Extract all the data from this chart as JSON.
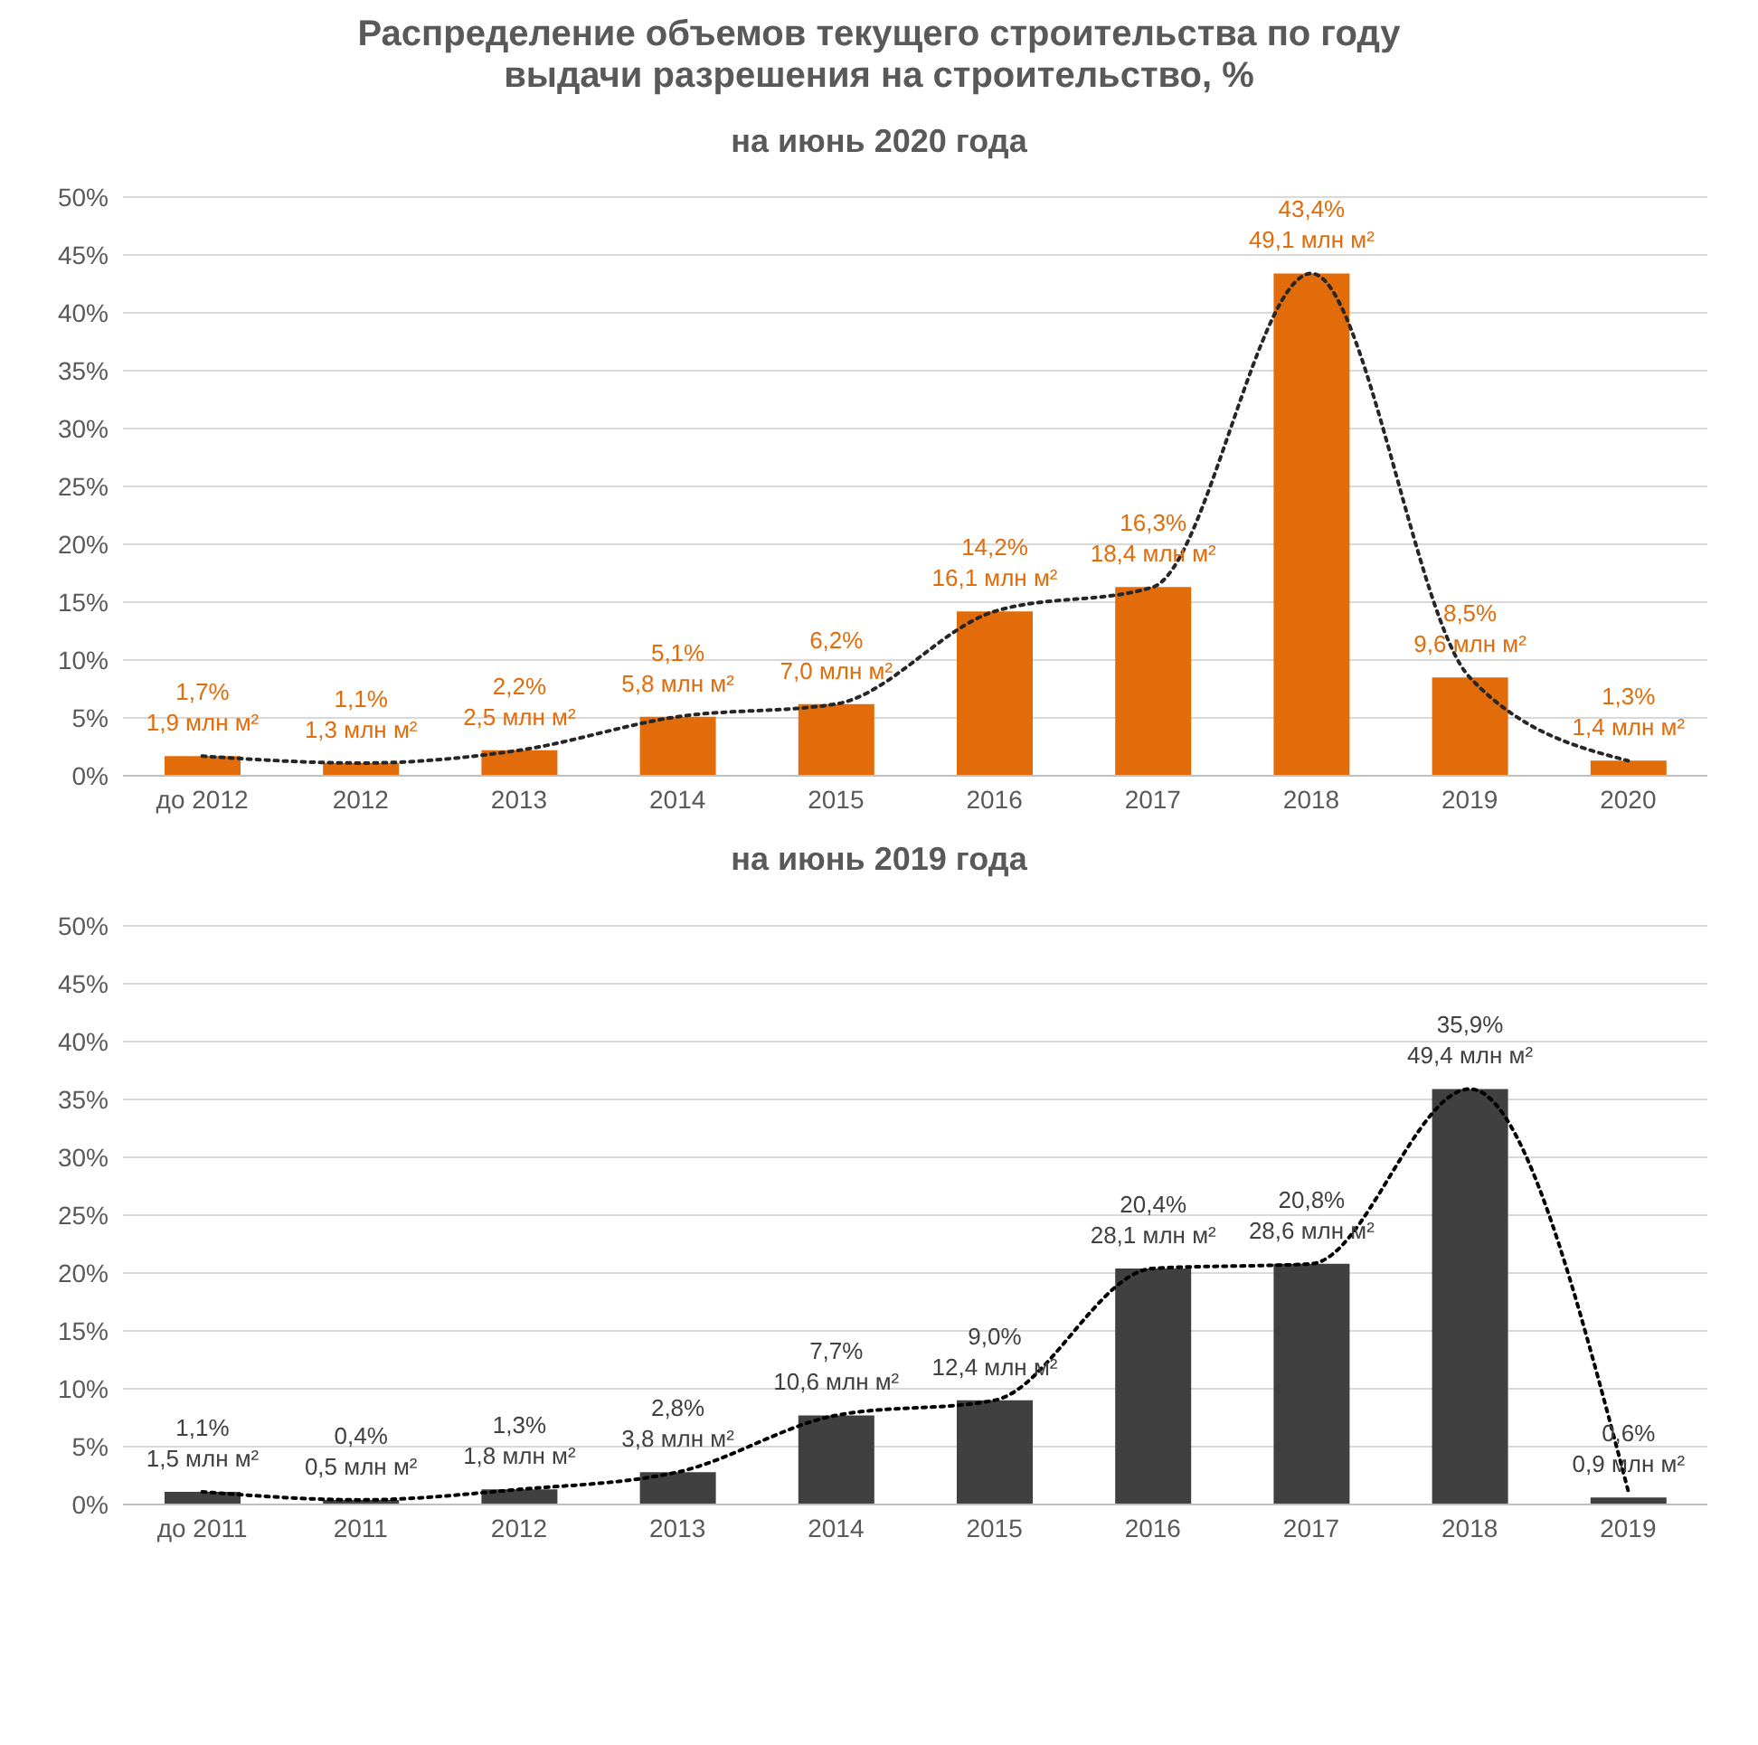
{
  "chart_data": [
    {
      "type": "bar",
      "title": "Распределение объемов текущего строительства по году выдачи разрешения на строительство, %",
      "subtitle": "на июнь 2020 года",
      "categories": [
        "до 2012",
        "2012",
        "2013",
        "2014",
        "2015",
        "2016",
        "2017",
        "2018",
        "2019",
        "2020"
      ],
      "series": [
        {
          "color": "#e36c0a",
          "values": [
            1.7,
            1.1,
            2.2,
            5.1,
            6.2,
            14.2,
            16.3,
            43.4,
            8.5,
            1.3
          ],
          "value_labels": [
            "1,7%\n1,9 млн м²",
            "1,1%\n1,3 млн м²",
            "2,2%\n2,5 млн м²",
            "5,1%\n5,8 млн м²",
            "6,2%\n7,0 млн м²",
            "14,2%\n16,1 млн м²",
            "16,3%\n18,4 млн м²",
            "43,4%\n49,1 млн м²",
            "8,5%\n9,6 млн м²",
            "1,3%\n1,4 млн м²"
          ]
        },
        {
          "type": "line",
          "color": "#262626",
          "line_style": "dotted",
          "marker": "none",
          "values": [
            1.7,
            1.1,
            2.2,
            5.1,
            6.2,
            14.2,
            16.3,
            43.4,
            8.5,
            1.3
          ]
        }
      ],
      "ylim": [
        0,
        50
      ],
      "yticks": [
        {
          "value": 0,
          "label": "0%"
        },
        {
          "value": 5,
          "label": "5%"
        },
        {
          "value": 10,
          "label": "10%"
        },
        {
          "value": 15,
          "label": "15%"
        },
        {
          "value": 20,
          "label": "20%"
        },
        {
          "value": 25,
          "label": "25%"
        },
        {
          "value": 30,
          "label": "30%"
        },
        {
          "value": 35,
          "label": "35%"
        },
        {
          "value": 40,
          "label": "40%"
        },
        {
          "value": 45,
          "label": "45%"
        },
        {
          "value": 50,
          "label": "50%"
        }
      ],
      "grid": "y",
      "legend": false
    },
    {
      "type": "bar",
      "title": "на июнь 2019 года",
      "categories": [
        "до 2011",
        "2011",
        "2012",
        "2013",
        "2014",
        "2015",
        "2016",
        "2017",
        "2018",
        "2019"
      ],
      "series": [
        {
          "color": "#404040",
          "values": [
            1.1,
            0.4,
            1.3,
            2.8,
            7.7,
            9.0,
            20.4,
            20.8,
            35.9,
            0.6
          ],
          "value_labels": [
            "1,1%\n1,5 млн м²",
            "0,4%\n0,5 млн м²",
            "1,3%\n1,8 млн м²",
            "2,8%\n3,8 млн м²",
            "7,7%\n10,6 млн м²",
            "9,0%\n12,4 млн м²",
            "20,4%\n28,1 млн м²",
            "20,8%\n28,6 млн м²",
            "35,9%\n49,4 млн м²",
            "0,6%\n0,9 млн м²"
          ]
        },
        {
          "type": "line",
          "color": "#000000",
          "line_style": "dotted",
          "marker": "none",
          "values": [
            1.1,
            0.4,
            1.3,
            2.8,
            7.7,
            9.0,
            20.4,
            20.8,
            35.9,
            1.2
          ]
        }
      ],
      "ylim": [
        0,
        50
      ],
      "yticks": [
        {
          "value": 0,
          "label": "0%"
        },
        {
          "value": 5,
          "label": "5%"
        },
        {
          "value": 10,
          "label": "10%"
        },
        {
          "value": 15,
          "label": "15%"
        },
        {
          "value": 20,
          "label": "20%"
        },
        {
          "value": 25,
          "label": "25%"
        },
        {
          "value": 30,
          "label": "30%"
        },
        {
          "value": 35,
          "label": "35%"
        },
        {
          "value": 40,
          "label": "40%"
        },
        {
          "value": 45,
          "label": "45%"
        },
        {
          "value": 50,
          "label": "50%"
        }
      ],
      "grid": "y",
      "legend": false
    }
  ]
}
